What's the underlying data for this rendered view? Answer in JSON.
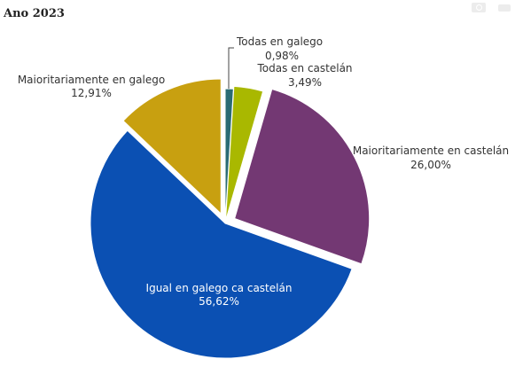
{
  "title": "Ano 2023",
  "toolbar": {
    "icons": [
      "camera-icon",
      "folder-icon"
    ]
  },
  "chart_data": {
    "type": "pie",
    "title": "Ano 2023",
    "slices": [
      {
        "label": "Todas en galego",
        "value": 0.98,
        "value_label": "0,98%",
        "color": "#2a6b73"
      },
      {
        "label": "Todas en castelán",
        "value": 3.49,
        "value_label": "3,49%",
        "color": "#a9b800"
      },
      {
        "label": "Maioritariamente en castelán",
        "value": 26.0,
        "value_label": "26,00%",
        "color": "#733873"
      },
      {
        "label": "Igual en galego ca castelán",
        "value": 56.62,
        "value_label": "56,62%",
        "color": "#0b50b3"
      },
      {
        "label": "Maioritariamente en galego",
        "value": 12.91,
        "value_label": "12,91%",
        "color": "#c8a010"
      }
    ],
    "start_angle_deg": 0,
    "direction": "clockwise",
    "exploded": true
  }
}
